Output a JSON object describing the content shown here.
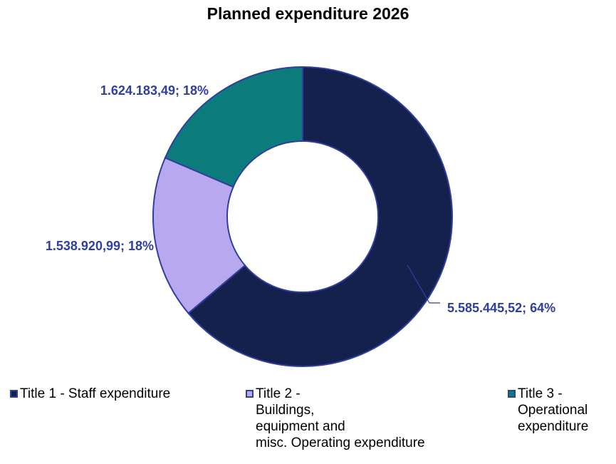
{
  "chart_data": {
    "type": "pie",
    "title": "Planned expenditure 2026",
    "donut": true,
    "categories": [
      "Title 1 - Staff expenditure",
      "Title 2 -\nBuildings,\nequipment and\nmisc. Operating expenditure",
      "Title 3 -\nOperational\nexpenditure"
    ],
    "values": [
      5585445.52,
      1538920.99,
      1624183.49
    ],
    "data_labels": [
      "5.585.445,52; 64%",
      "1.538.920,99; 18%",
      "1.624.183,49; 18%"
    ],
    "colors": [
      "#15214d",
      "#b8a8f0",
      "#0b7b7b"
    ],
    "border_color": "#2f3f9f",
    "label_color": "#2f3f9f",
    "legend_position": "bottom"
  }
}
